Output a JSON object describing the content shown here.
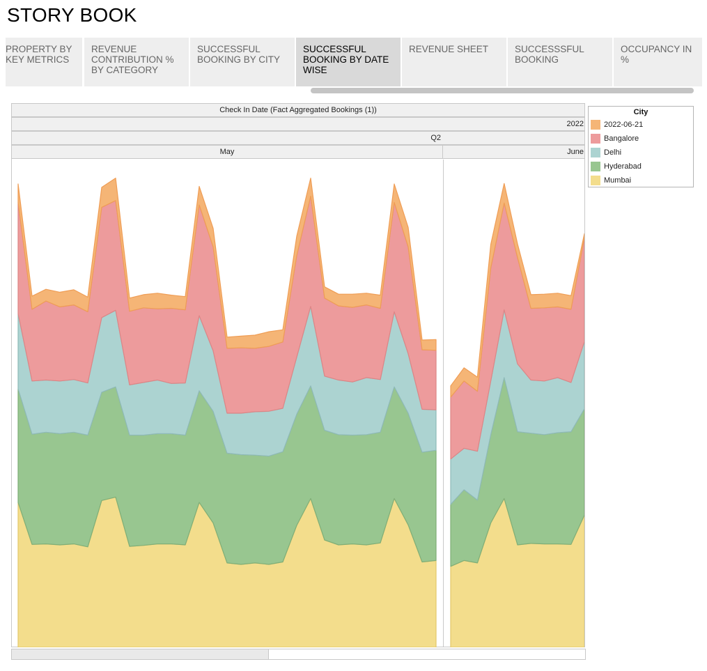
{
  "page": {
    "title": "STORY BOOK"
  },
  "tabs": [
    {
      "label": "PROPERTY BY KEY METRICS",
      "active": false
    },
    {
      "label": "REVENUE CONTRIBUTION % BY CATEGORY",
      "active": false
    },
    {
      "label": "SUCCESSFUL BOOKING BY CITY",
      "active": false
    },
    {
      "label": "SUCCESSFUL BOOKING BY DATE WISE",
      "active": true
    },
    {
      "label": "REVENUE SHEET",
      "active": false
    },
    {
      "label": "SUCCESSSFUL BOOKING",
      "active": false
    },
    {
      "label": "OCCUPANCY IN %",
      "active": false
    }
  ],
  "headers": {
    "field": "Check In Date (Fact Aggregated Bookings (1))",
    "year": "2022",
    "quarter": "Q2",
    "months": [
      "May",
      "June"
    ]
  },
  "legend": {
    "title": "City",
    "items": [
      {
        "label": "2022-06-21",
        "color": "#f5b576"
      },
      {
        "label": "Bangalore",
        "color": "#ed9b9c"
      },
      {
        "label": "Delhi",
        "color": "#acd3d1"
      },
      {
        "label": "Hyderabad",
        "color": "#98c690"
      },
      {
        "label": "Mumbai",
        "color": "#f3dd8c"
      }
    ]
  },
  "chart_data": {
    "type": "area",
    "stacked": true,
    "panels": [
      "May",
      "June"
    ],
    "ylim": [
      0,
      1.0
    ],
    "series_order": [
      "Mumbai",
      "Hyderabad",
      "Delhi",
      "Bangalore",
      "2022-06-21"
    ],
    "colors": {
      "Mumbai": "#f3dd8c",
      "Hyderabad": "#98c690",
      "Delhi": "#acd3d1",
      "Bangalore": "#ed9b9c",
      "2022-06-21": "#f5b576"
    },
    "may": {
      "days": [
        "2022-05-01",
        "2022-05-02",
        "2022-05-03",
        "2022-05-04",
        "2022-05-05",
        "2022-05-06",
        "2022-05-07",
        "2022-05-08",
        "2022-05-09",
        "2022-05-10",
        "2022-05-11",
        "2022-05-12",
        "2022-05-13",
        "2022-05-14",
        "2022-05-15",
        "2022-05-16",
        "2022-05-17",
        "2022-05-18",
        "2022-05-19",
        "2022-05-20",
        "2022-05-21",
        "2022-05-22",
        "2022-05-23",
        "2022-05-24",
        "2022-05-25",
        "2022-05-26",
        "2022-05-27",
        "2022-05-28",
        "2022-05-29",
        "2022-05-30",
        "2022-05-31"
      ],
      "Mumbai": [
        0.297,
        0.211,
        0.212,
        0.21,
        0.212,
        0.206,
        0.301,
        0.308,
        0.207,
        0.209,
        0.212,
        0.212,
        0.21,
        0.297,
        0.255,
        0.173,
        0.17,
        0.173,
        0.17,
        0.175,
        0.25,
        0.305,
        0.22,
        0.21,
        0.212,
        0.21,
        0.214,
        0.305,
        0.251,
        0.175,
        0.178
      ],
      "Hyderabad": [
        0.233,
        0.226,
        0.229,
        0.228,
        0.229,
        0.229,
        0.222,
        0.226,
        0.228,
        0.226,
        0.226,
        0.226,
        0.225,
        0.229,
        0.229,
        0.225,
        0.225,
        0.221,
        0.222,
        0.226,
        0.228,
        0.231,
        0.225,
        0.226,
        0.223,
        0.226,
        0.227,
        0.229,
        0.229,
        0.225,
        0.226
      ],
      "Delhi": [
        0.154,
        0.109,
        0.107,
        0.108,
        0.108,
        0.107,
        0.153,
        0.157,
        0.103,
        0.108,
        0.11,
        0.103,
        0.107,
        0.154,
        0.124,
        0.082,
        0.085,
        0.089,
        0.092,
        0.089,
        0.117,
        0.163,
        0.111,
        0.112,
        0.109,
        0.117,
        0.108,
        0.154,
        0.122,
        0.088,
        0.083
      ],
      "Bangalore": [
        0.228,
        0.147,
        0.162,
        0.152,
        0.153,
        0.146,
        0.226,
        0.225,
        0.151,
        0.153,
        0.146,
        0.154,
        0.15,
        0.227,
        0.213,
        0.133,
        0.134,
        0.13,
        0.133,
        0.136,
        0.208,
        0.226,
        0.16,
        0.152,
        0.153,
        0.149,
        0.146,
        0.224,
        0.219,
        0.122,
        0.122
      ],
      "2022-06-21": [
        0.038,
        0.027,
        0.024,
        0.03,
        0.031,
        0.03,
        0.041,
        0.046,
        0.027,
        0.027,
        0.032,
        0.027,
        0.027,
        0.038,
        0.038,
        0.023,
        0.024,
        0.027,
        0.03,
        0.025,
        0.04,
        0.037,
        0.023,
        0.024,
        0.027,
        0.024,
        0.027,
        0.038,
        0.04,
        0.02,
        0.022
      ]
    },
    "june": {
      "days": [
        "2022-06-01",
        "2022-06-02",
        "2022-06-03",
        "2022-06-04",
        "2022-06-05",
        "2022-06-06",
        "2022-06-07",
        "2022-06-08",
        "2022-06-09",
        "2022-06-10",
        "2022-06-11"
      ],
      "Mumbai": [
        0.166,
        0.178,
        0.173,
        0.255,
        0.305,
        0.21,
        0.213,
        0.212,
        0.212,
        0.211,
        0.271
      ],
      "Hyderabad": [
        0.127,
        0.145,
        0.129,
        0.181,
        0.248,
        0.232,
        0.226,
        0.224,
        0.228,
        0.231,
        0.218
      ],
      "Delhi": [
        0.093,
        0.085,
        0.1,
        0.11,
        0.139,
        0.139,
        0.109,
        0.11,
        0.113,
        0.101,
        0.138
      ],
      "Bangalore": [
        0.127,
        0.138,
        0.123,
        0.232,
        0.219,
        0.218,
        0.147,
        0.15,
        0.145,
        0.15,
        0.213
      ],
      "2022-06-21": [
        0.023,
        0.027,
        0.029,
        0.048,
        0.04,
        0.028,
        0.028,
        0.028,
        0.028,
        0.028,
        0.008
      ]
    }
  }
}
